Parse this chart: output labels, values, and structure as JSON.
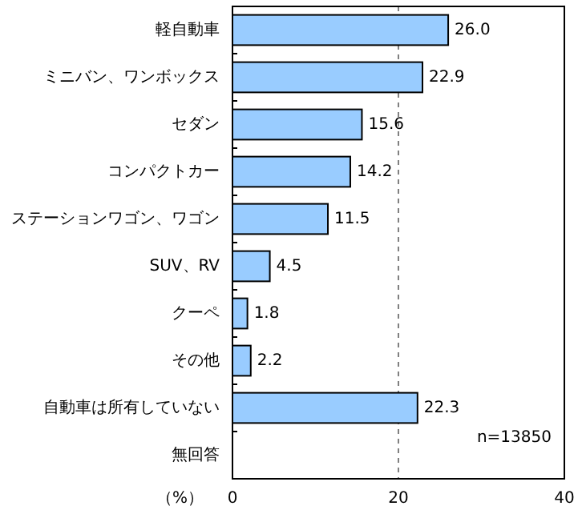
{
  "chart_data": {
    "type": "bar",
    "orientation": "horizontal",
    "xlabel": "（%）",
    "categories": [
      "軽自動車",
      "ミニバン、ワンボックス",
      "セダン",
      "コンパクトカー",
      "ステーションワゴン、ワゴン",
      "SUV、RV",
      "クーペ",
      "その他",
      "自動車は所有していない",
      "無回答"
    ],
    "values": [
      26.0,
      22.9,
      15.6,
      14.2,
      11.5,
      4.5,
      1.8,
      2.2,
      22.3,
      null
    ],
    "color": "#99ccff",
    "xlim": [
      0,
      40
    ],
    "xticks": [
      0,
      20,
      40
    ],
    "grid": "x",
    "value_labels": [
      "26.0",
      "22.9",
      "15.6",
      "14.2",
      "11.5",
      "4.5",
      "1.8",
      "2.2",
      "22.3",
      null
    ],
    "annotations": [
      "n=13850"
    ]
  }
}
